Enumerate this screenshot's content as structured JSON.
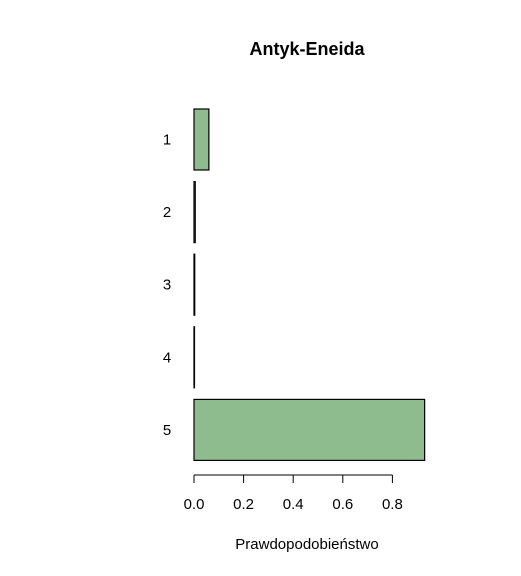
{
  "chart_data": {
    "type": "bar",
    "orientation": "horizontal",
    "title": "Antyk-Eneida",
    "xlabel": "Prawdopodobieństwo",
    "ylabel": "",
    "categories": [
      "1",
      "2",
      "3",
      "4",
      "5"
    ],
    "values": [
      0.06,
      0.005,
      0.003,
      0.002,
      0.93
    ],
    "xlim": [
      0,
      0.95
    ],
    "xticks": [
      "0.0",
      "0.2",
      "0.4",
      "0.6",
      "0.8"
    ],
    "xtick_values": [
      0,
      0.2,
      0.4,
      0.6,
      0.8
    ],
    "grid": false,
    "bar_color": "#8fbc8f",
    "bar_edge_color": "#000000"
  }
}
